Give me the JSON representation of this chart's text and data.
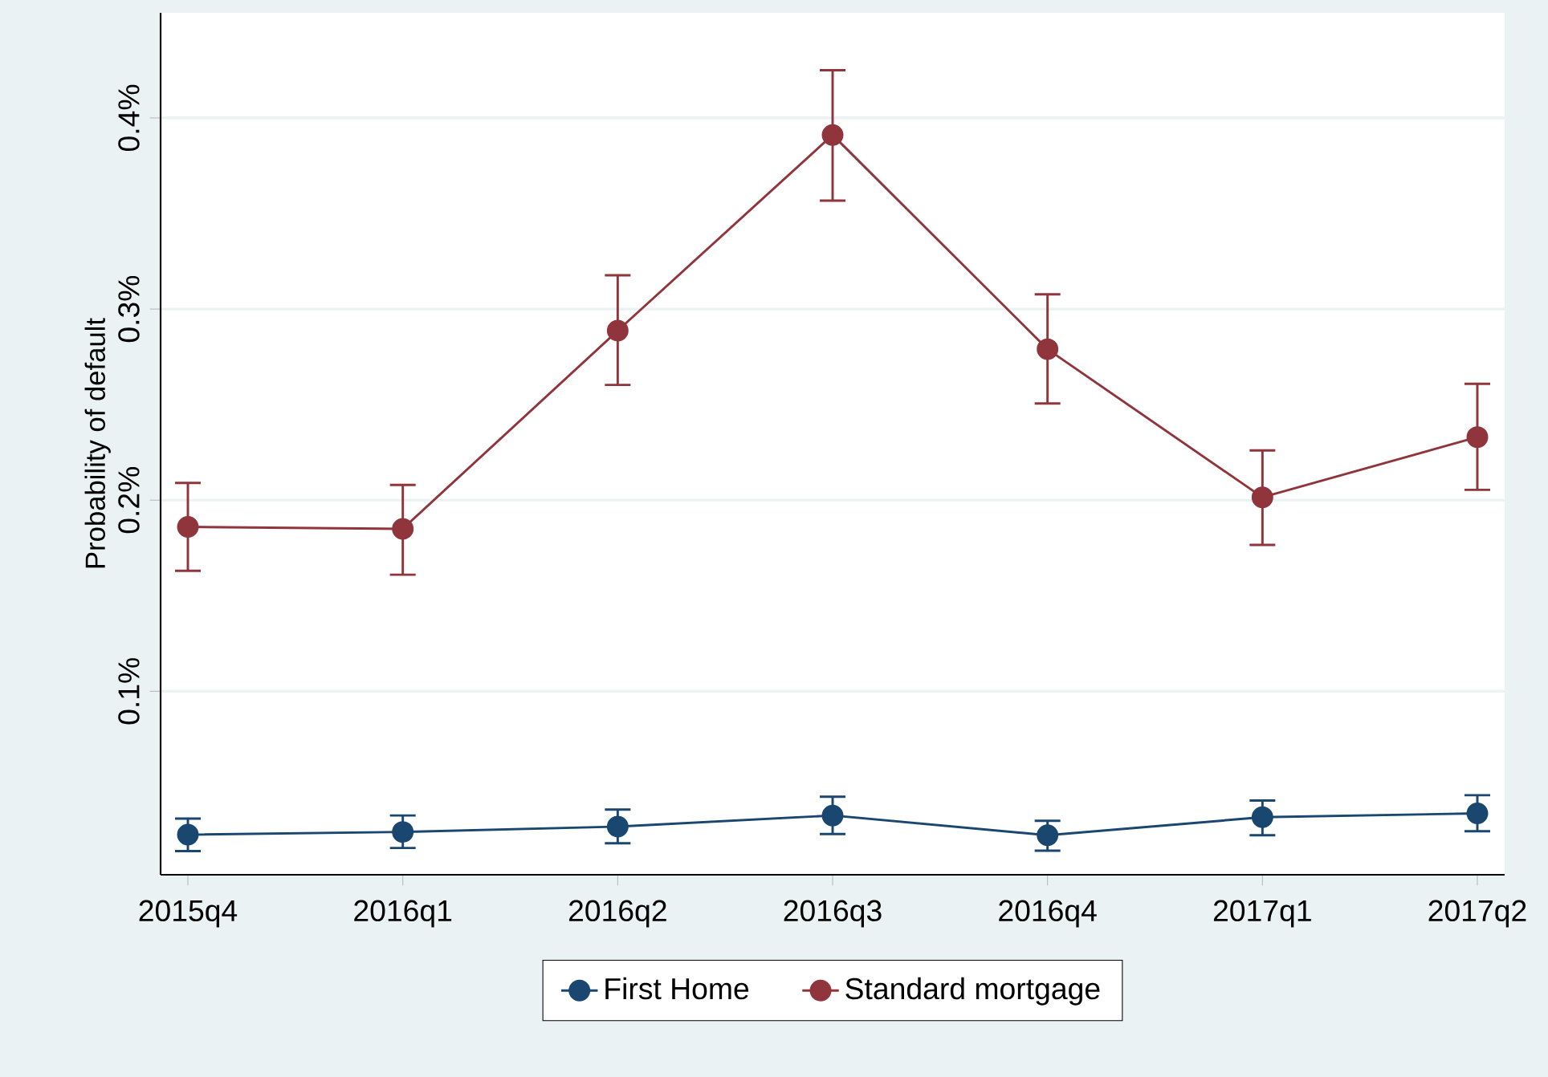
{
  "chart_data": {
    "type": "line",
    "ylabel": "Probability of default",
    "categories": [
      "2015q4",
      "2016q1",
      "2016q2",
      "2016q3",
      "2016q4",
      "2017q1",
      "2017q2"
    ],
    "ylim": [
      0.004,
      0.455
    ],
    "yticks": [
      {
        "value": 0.1,
        "label": "0.1%"
      },
      {
        "value": 0.2,
        "label": "0.2%"
      },
      {
        "value": 0.3,
        "label": "0.3%"
      },
      {
        "value": 0.4,
        "label": "0.4%"
      }
    ],
    "grid": "y",
    "legend": "bottom",
    "marker": "circle",
    "line_style": "solid",
    "series": [
      {
        "name": "First Home",
        "color": "#1a476f",
        "values": [
          0.025,
          0.0264,
          0.0292,
          0.035,
          0.0247,
          0.0341,
          0.0361
        ],
        "errors": [
          [
            0.0164,
            0.0334
          ],
          [
            0.018,
            0.035
          ],
          [
            0.0205,
            0.0381
          ],
          [
            0.0253,
            0.0448
          ],
          [
            0.0166,
            0.0322
          ],
          [
            0.0247,
            0.0428
          ],
          [
            0.0268,
            0.0456
          ]
        ]
      },
      {
        "name": "Standard mortgage",
        "color": "#90353b",
        "values": [
          0.186,
          0.185,
          0.2887,
          0.3911,
          0.279,
          0.2015,
          0.233
        ],
        "errors": [
          [
            0.163,
            0.209
          ],
          [
            0.161,
            0.208
          ],
          [
            0.2603,
            0.3177
          ],
          [
            0.3567,
            0.425
          ],
          [
            0.2506,
            0.3077
          ],
          [
            0.1766,
            0.226
          ],
          [
            0.2054,
            0.2609
          ]
        ]
      }
    ]
  }
}
